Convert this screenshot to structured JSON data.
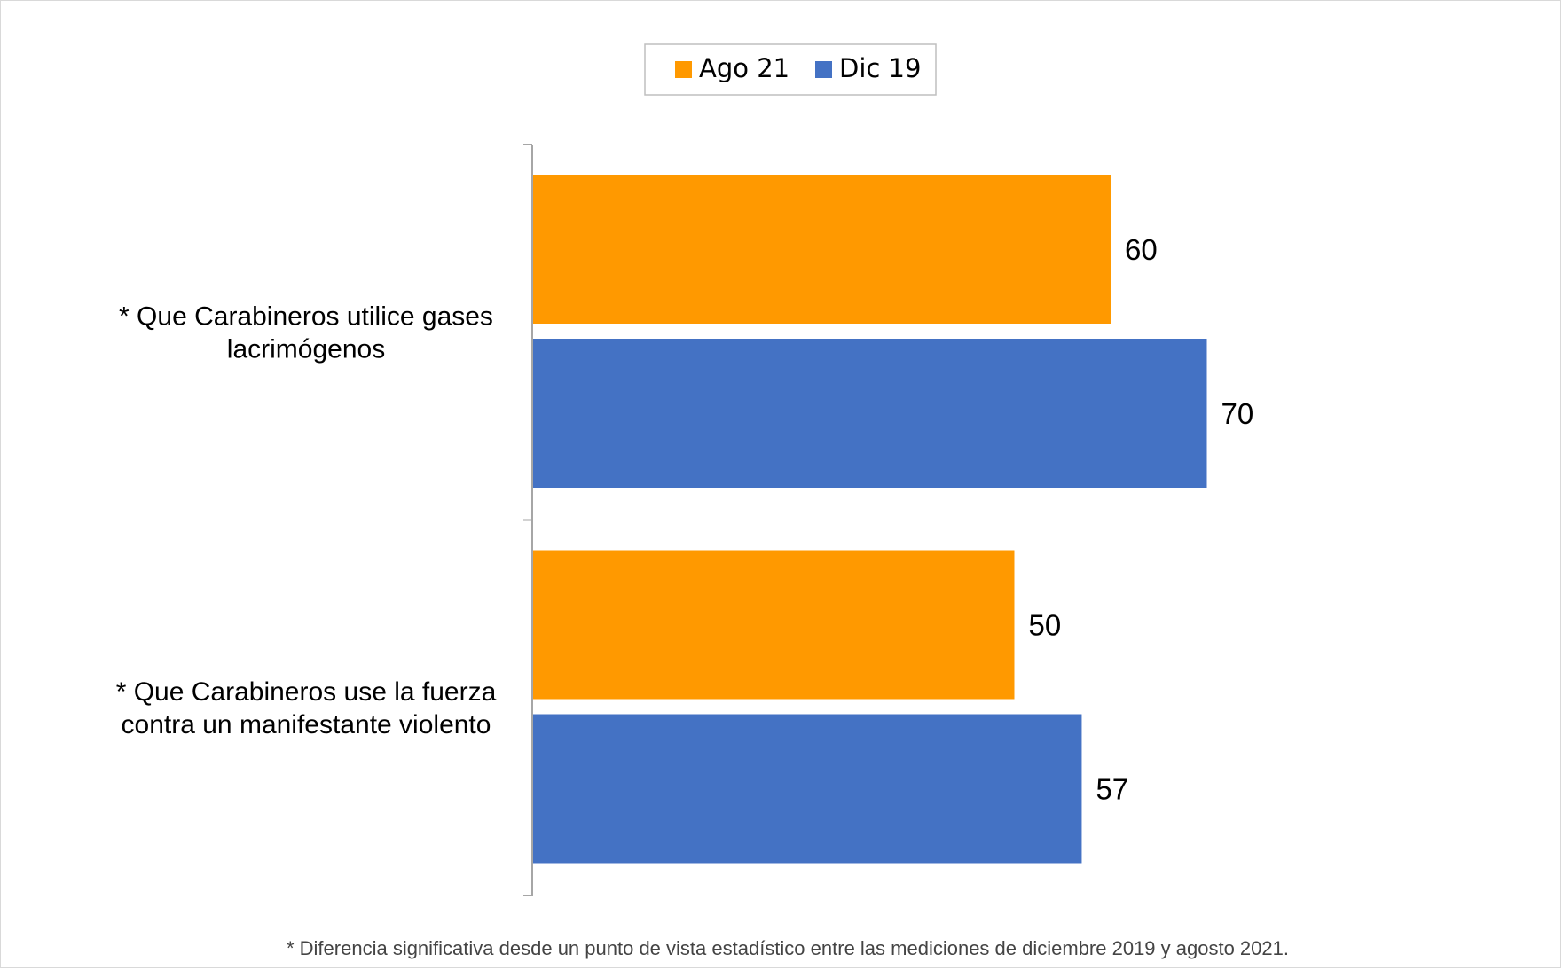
{
  "chart_data": {
    "type": "bar",
    "orientation": "horizontal",
    "categories": [
      [
        "* Que Carabineros utilice gases",
        "lacrimógenos"
      ],
      [
        "* Que Carabineros use la fuerza",
        "contra un manifestante violento"
      ]
    ],
    "series": [
      {
        "name": "Ago 21",
        "color": "#FF9900",
        "values": [
          60,
          50
        ]
      },
      {
        "name": "Dic 19",
        "color": "#4472C4",
        "values": [
          70,
          57
        ]
      }
    ],
    "xlim": [
      0,
      100
    ],
    "grid": false,
    "legend_position": "top",
    "footnote": "* Diferencia significativa desde un punto de vista estadístico entre las mediciones de diciembre 2019 y agosto 2021."
  }
}
